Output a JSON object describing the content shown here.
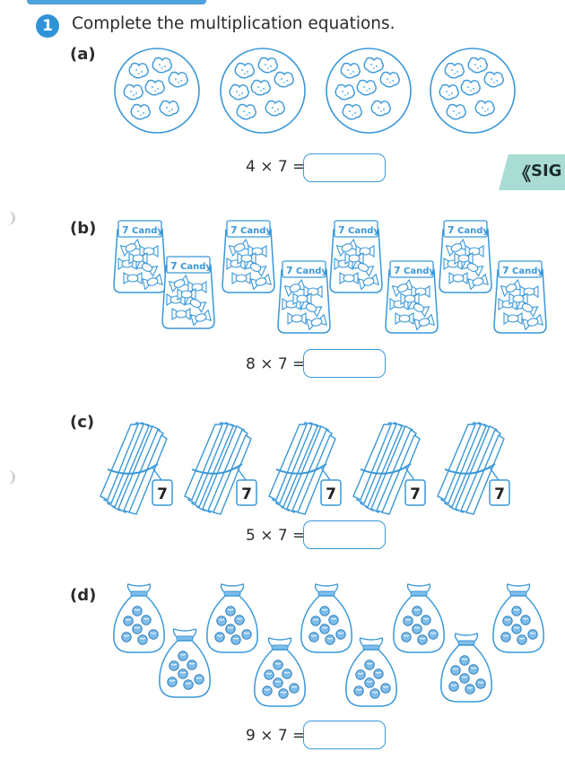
{
  "header": {
    "question_number": "1",
    "instruction": "Complete the multiplication equations."
  },
  "side_tab": {
    "label": "SIG",
    "chevron": "《"
  },
  "parts": [
    {
      "label": "(a)",
      "picture": "4 plates of 7 cookies",
      "equation": {
        "a": "4",
        "op": "×",
        "b": "7",
        "eq": "="
      },
      "answer": ""
    },
    {
      "label": "(b)",
      "picture": "8 bags of 7 candies",
      "equation": {
        "a": "8",
        "op": "×",
        "b": "7",
        "eq": "="
      },
      "answer": "",
      "bag_label": "Candy",
      "bag_num": "7"
    },
    {
      "label": "(c)",
      "picture": "5 bundles of 7 sticks",
      "equation": {
        "a": "5",
        "op": "×",
        "b": "7",
        "eq": "="
      },
      "answer": "",
      "tag": "7"
    },
    {
      "label": "(d)",
      "picture": "9 bags of 7 marbles",
      "equation": {
        "a": "9",
        "op": "×",
        "b": "7",
        "eq": "="
      },
      "answer": ""
    }
  ],
  "colors": {
    "accent": "#3a98d8",
    "badge": "#2f93d8",
    "marble_fill": "#7fbde9",
    "tab": "#a9ddd3"
  }
}
